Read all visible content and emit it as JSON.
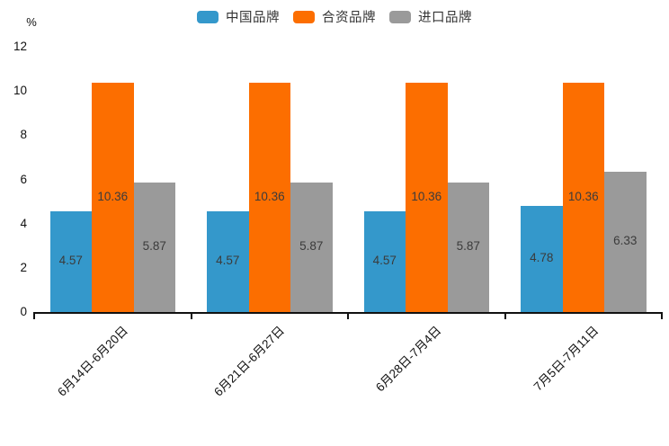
{
  "chart_data": {
    "type": "bar",
    "title": "",
    "xlabel": "",
    "ylabel": "%",
    "ylim": [
      0,
      12
    ],
    "yticks": [
      0,
      2,
      4,
      6,
      8,
      10,
      12
    ],
    "grid": false,
    "legend_position": "top",
    "value_label_position": "inside-center",
    "x_tick_label_rotation_deg": -45,
    "categories": [
      "6月14日-6月20日",
      "6月21日-6月27日",
      "6月28日-7月4日",
      "7月5日-7月11日"
    ],
    "series": [
      {
        "name": "中国品牌",
        "color": "#3498cb",
        "values": [
          4.57,
          4.57,
          4.57,
          4.78
        ]
      },
      {
        "name": "合资品牌",
        "color": "#fc6e00",
        "values": [
          10.36,
          10.36,
          10.36,
          10.36
        ]
      },
      {
        "name": "进口品牌",
        "color": "#9a9a9a",
        "values": [
          5.87,
          5.87,
          5.87,
          6.33
        ]
      }
    ],
    "colors": {
      "axis": "#111111",
      "tick_label": "#111111",
      "value_label": "#3b3b3b",
      "legend_label": "#333333",
      "background": "#ffffff"
    }
  }
}
